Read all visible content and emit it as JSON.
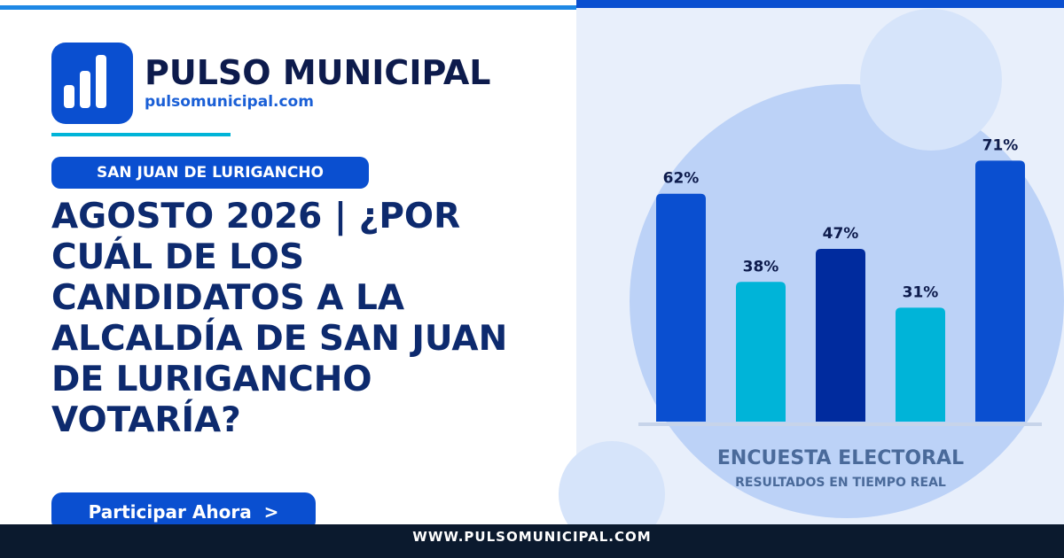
{
  "brand": {
    "name": "PULSO MUNICIPAL",
    "url": "pulsomunicipal.com"
  },
  "tag": "SAN JUAN DE LURIGANCHO",
  "headline": "AGOSTO 2026 | ¿POR CUÁL DE LOS CANDIDATOS A LA ALCALDÍA DE SAN JUAN DE LURIGANCHO VOTARÍA?",
  "cta": "Participar Ahora  >",
  "footer": "WWW.PULSOMUNICIPAL.COM",
  "chart_data": {
    "type": "bar",
    "title": "ENCUESTA ELECTORAL",
    "subtitle": "RESULTADOS EN TIEMPO REAL",
    "values": [
      62,
      38,
      47,
      31,
      71
    ],
    "value_labels": [
      "62%",
      "38%",
      "47%",
      "31%",
      "71%"
    ],
    "colors": [
      "#0a4fd0",
      "#00b4d8",
      "#002b9e",
      "#00b4d8",
      "#0a4fd0"
    ]
  }
}
